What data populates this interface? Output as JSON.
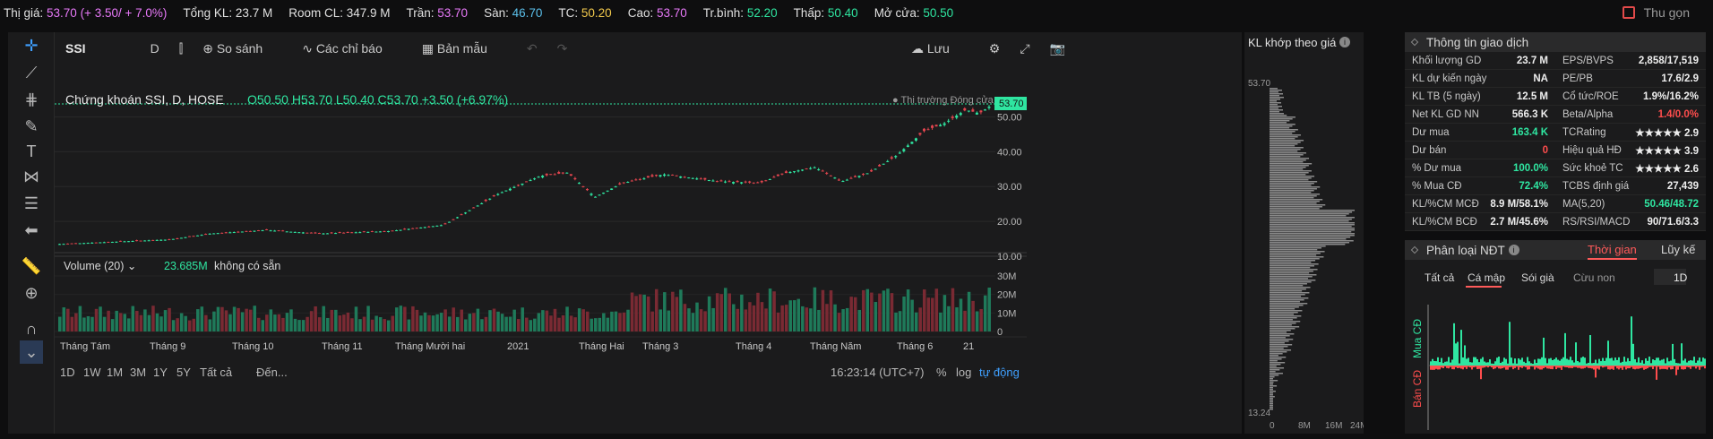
{
  "topbar": [
    {
      "label": "Thị giá:",
      "value": "53.70 (+ 3.50/ + 7.0%)",
      "color": "#e879f9"
    },
    {
      "label": "Tổng KL:",
      "value": "23.7 M",
      "color": "#e0e0e0"
    },
    {
      "label": "Room CL:",
      "value": "347.9 M",
      "color": "#e0e0e0"
    },
    {
      "label": "Trần:",
      "value": "53.70",
      "color": "#e879f9"
    },
    {
      "label": "Sàn:",
      "value": "46.70",
      "color": "#5bc0eb"
    },
    {
      "label": "TC:",
      "value": "50.20",
      "color": "#f2c94c"
    },
    {
      "label": "Cao:",
      "value": "53.70",
      "color": "#e879f9"
    },
    {
      "label": "Tr.bình:",
      "value": "52.20",
      "color": "#2fe6a1"
    },
    {
      "label": "Thấp:",
      "value": "50.40",
      "color": "#2fe6a1"
    },
    {
      "label": "Mở cửa:",
      "value": "50.50",
      "color": "#2fe6a1"
    }
  ],
  "collapse_label": "Thu gọn",
  "toolbar": {
    "symbol": "SSI",
    "interval": "D",
    "compare": "So sánh",
    "indicators": "Các chỉ báo",
    "templates": "Bản mẫu",
    "save": "Lưu"
  },
  "legend": {
    "title": "Chứng khoán SSI, D, HOSE",
    "ohlc": "O50.50 H53.70 L50.40 C53.70 +3.50 (+6.97%)",
    "market": "Thị trường Đóng cửa",
    "last": "53.70"
  },
  "price_axis": [
    "50.00",
    "40.00",
    "30.00",
    "20.00",
    "10.00"
  ],
  "volume": {
    "label": "Volume (20)",
    "value": "23.685M",
    "na": "không có sẵn",
    "axis": [
      "30M",
      "20M",
      "10M",
      "0"
    ]
  },
  "months": [
    "Tháng Tám",
    "Tháng 9",
    "Tháng 10",
    "Tháng 11",
    "Tháng Mười hai",
    "2021",
    "Tháng Hai",
    "Tháng 3",
    "Tháng 4",
    "Tháng Năm",
    "Tháng 6",
    "21"
  ],
  "ranges": [
    "1D",
    "1W",
    "1M",
    "3M",
    "1Y",
    "5Y",
    "Tất cả"
  ],
  "goto": "Đến...",
  "time": "16:23:14 (UTC+7)",
  "bottom_right": [
    "%",
    "log",
    "tự động"
  ],
  "vp": {
    "title": "KL khớp theo giá",
    "top": "53.70",
    "bottom": "13.24",
    "axis": [
      "0",
      "8M",
      "16M",
      "24M"
    ]
  },
  "info": {
    "title": "Thông tin giao dịch",
    "left": [
      [
        "Khối lượng GD",
        "23.7 M",
        ""
      ],
      [
        "KL dự kiến ngày",
        "NA",
        ""
      ],
      [
        "KL TB (5 ngày)",
        "12.5 M",
        ""
      ],
      [
        "Net KL GD NN",
        "566.3 K",
        ""
      ],
      [
        "Dư mua",
        "163.4 K",
        "#2fe6a1"
      ],
      [
        "Dư bán",
        "0",
        "#ff4d4d"
      ],
      [
        "% Dư mua",
        "100.0%",
        "#2fe6a1"
      ],
      [
        "% Mua CĐ",
        "72.4%",
        "#2fe6a1"
      ],
      [
        "KL/%CM MCĐ",
        "8.9 M/58.1%",
        ""
      ],
      [
        "KL/%CM BCĐ",
        "2.7 M/45.6%",
        ""
      ]
    ],
    "right": [
      [
        "EPS/BVPS",
        "2,858/17,519",
        ""
      ],
      [
        "PE/PB",
        "17.6/2.9",
        ""
      ],
      [
        "Cổ tức/ROE",
        "1.9%/16.2%",
        ""
      ],
      [
        "Beta/Alpha",
        "1.4/0.0%",
        "#ff4d4d"
      ],
      [
        "TCRating",
        "★★★★★ 2.9",
        ""
      ],
      [
        "Hiệu quả HĐ",
        "★★★★★ 3.9",
        ""
      ],
      [
        "Sức khoẻ TC",
        "★★★★★ 2.6",
        ""
      ],
      [
        "TCBS định giá",
        "27,439",
        ""
      ],
      [
        "MA(5,20)",
        "50.46/48.72",
        "#2fe6a1"
      ],
      [
        "RS/RSI/MACD",
        "90/71.6/3.3",
        ""
      ]
    ]
  },
  "ndt": {
    "title": "Phân loại NĐT",
    "tab_time": "Thời gian",
    "tab_cum": "Lũy kế",
    "filters": [
      "Tất cả",
      "Cá mập",
      "Sói già",
      "Cừu non"
    ],
    "period": "1D",
    "buy": "Mua CĐ",
    "sell": "Bán CĐ"
  }
}
